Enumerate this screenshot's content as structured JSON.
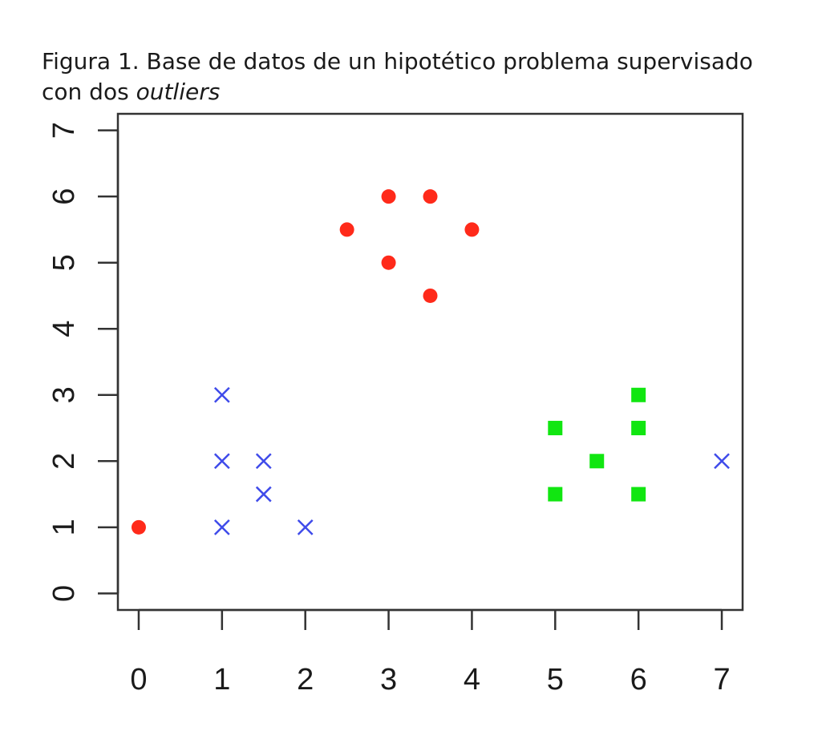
{
  "figure": {
    "caption_main": "Figura 1. Base de datos de un hipotético problema supervisado con dos ",
    "caption_italic": "outliers"
  },
  "chart_data": {
    "type": "scatter",
    "xlim": [
      -0.25,
      7.25
    ],
    "ylim": [
      -0.25,
      7.25
    ],
    "x_ticks": [
      0,
      1,
      2,
      3,
      4,
      5,
      6,
      7
    ],
    "y_ticks": [
      0,
      1,
      2,
      3,
      4,
      5,
      6,
      7
    ],
    "grid": false,
    "series": [
      {
        "marker": "circle",
        "color": "#ff2a1a",
        "points": [
          [
            0,
            1
          ],
          [
            2.5,
            5.5
          ],
          [
            3,
            6
          ],
          [
            3.5,
            6
          ],
          [
            4,
            5.5
          ],
          [
            3,
            5
          ],
          [
            3.5,
            4.5
          ]
        ]
      },
      {
        "marker": "x",
        "color": "#3f4bea",
        "points": [
          [
            1,
            3
          ],
          [
            1,
            2
          ],
          [
            1.5,
            2
          ],
          [
            1.5,
            1.5
          ],
          [
            1,
            1
          ],
          [
            2,
            1
          ],
          [
            7,
            2
          ]
        ]
      },
      {
        "marker": "square",
        "color": "#11e611",
        "points": [
          [
            5,
            2.5
          ],
          [
            6,
            3
          ],
          [
            6,
            2.5
          ],
          [
            5.5,
            2
          ],
          [
            5,
            1.5
          ],
          [
            6,
            1.5
          ]
        ]
      }
    ]
  }
}
